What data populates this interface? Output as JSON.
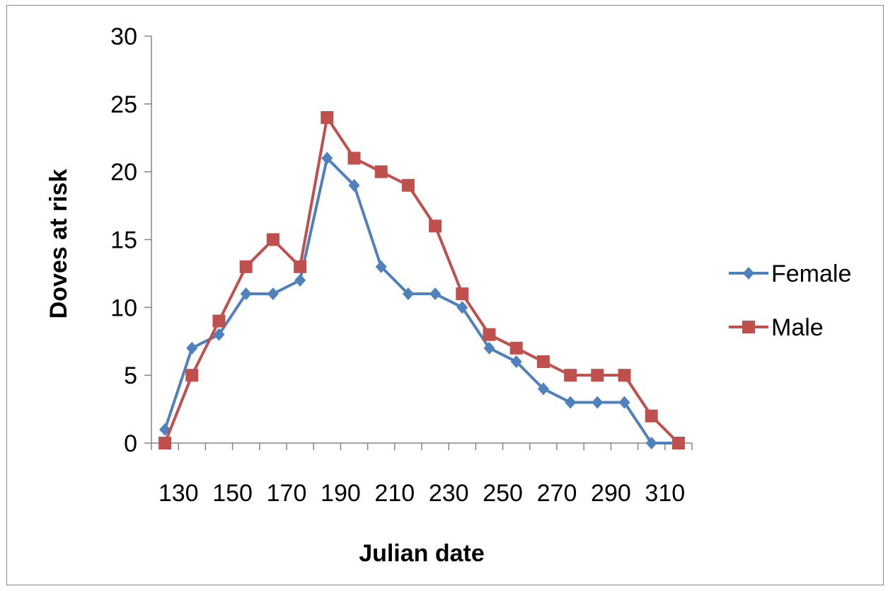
{
  "chart_data": {
    "type": "line",
    "title": "",
    "xlabel": "Julian date",
    "ylabel": "Doves at risk",
    "x": [
      130,
      140,
      150,
      160,
      170,
      180,
      190,
      200,
      210,
      220,
      230,
      240,
      250,
      260,
      270,
      280,
      290,
      300,
      310,
      320
    ],
    "x_tick_labels": [
      "130",
      "150",
      "170",
      "190",
      "210",
      "230",
      "250",
      "270",
      "290",
      "310"
    ],
    "y_ticks": [
      0,
      5,
      10,
      15,
      20,
      25,
      30
    ],
    "ylim": [
      0,
      30
    ],
    "grid": false,
    "legend_position": "right",
    "series": [
      {
        "name": "Female",
        "color": "#4f81bd",
        "marker": "diamond",
        "values": [
          1,
          7,
          8,
          11,
          11,
          12,
          21,
          19,
          13,
          11,
          11,
          10,
          7,
          6,
          4,
          3,
          3,
          3,
          0,
          0
        ]
      },
      {
        "name": "Male",
        "color": "#c0504d",
        "marker": "square",
        "values": [
          0,
          5,
          9,
          13,
          15,
          13,
          24,
          21,
          20,
          19,
          16,
          11,
          8,
          7,
          6,
          5,
          5,
          5,
          2,
          0
        ]
      }
    ]
  }
}
